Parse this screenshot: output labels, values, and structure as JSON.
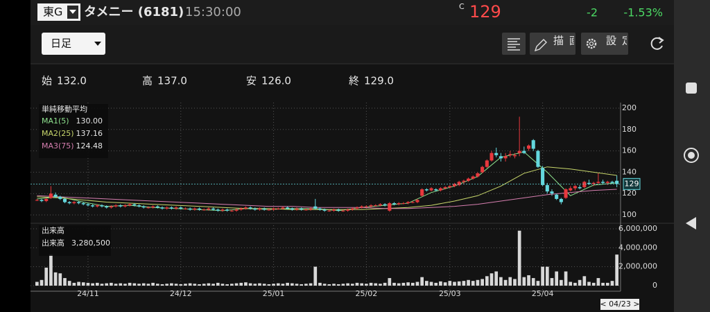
{
  "header": {
    "market": "東G",
    "name": "タメニー (6181)",
    "time": "15:30:00",
    "price_prefix": "C",
    "price": 129,
    "change": -2,
    "change_pct": {
      "value": -1.53,
      "label": "-1.53%"
    }
  },
  "toolbar": {
    "period": "日足",
    "draw_button": "描画",
    "settings_button": "設定"
  },
  "ohlc_summary": [
    {
      "label": "始",
      "value": 132,
      "value_label": "132.0"
    },
    {
      "label": "高",
      "value": 137,
      "value_label": "137.0"
    },
    {
      "label": "安",
      "value": 126,
      "value_label": "126.0"
    },
    {
      "label": "終",
      "value": 129,
      "value_label": "129.0"
    }
  ],
  "chart_data": {
    "type": "candlestick",
    "up_color": "#e8383d",
    "down_color": "#64d8de",
    "xlim": [
      -0.5,
      125.5
    ],
    "xticks": [
      {
        "value": 11,
        "label": "24/11"
      },
      {
        "value": 31,
        "label": "24/12"
      },
      {
        "value": 51,
        "label": "25/01"
      },
      {
        "value": 71,
        "label": "25/02"
      },
      {
        "value": 89,
        "label": "25/03"
      },
      {
        "value": 109,
        "label": "25/04"
      }
    ],
    "ylim": [
      100,
      200
    ],
    "yticks": [
      100,
      120,
      140,
      160,
      180,
      200
    ],
    "grid": true,
    "last_price": 129,
    "cursor_date": "< 04/23 >",
    "candles": [
      [
        114,
        115,
        113,
        114
      ],
      [
        114,
        115,
        112,
        113
      ],
      [
        113,
        116,
        112,
        115
      ],
      [
        116,
        127,
        115,
        120
      ],
      [
        119,
        121,
        116,
        117
      ],
      [
        117,
        118,
        114,
        115
      ],
      [
        115,
        116,
        111,
        112
      ],
      [
        112,
        113,
        110,
        111
      ],
      [
        111,
        113,
        110,
        112
      ],
      [
        112,
        113,
        110,
        111
      ],
      [
        111,
        112,
        109,
        110
      ],
      [
        110,
        111,
        108,
        109
      ],
      [
        109,
        110,
        107,
        108
      ],
      [
        108,
        110,
        107,
        109
      ],
      [
        109,
        110,
        107,
        108
      ],
      [
        108,
        109,
        106,
        107
      ],
      [
        107,
        109,
        106,
        108
      ],
      [
        108,
        110,
        107,
        109
      ],
      [
        109,
        110,
        107,
        108
      ],
      [
        108,
        110,
        107,
        109
      ],
      [
        109,
        111,
        108,
        110
      ],
      [
        110,
        111,
        108,
        109
      ],
      [
        109,
        110,
        107,
        108
      ],
      [
        108,
        109,
        106,
        107
      ],
      [
        107,
        108,
        106,
        107
      ],
      [
        107,
        109,
        106,
        108
      ],
      [
        108,
        109,
        106,
        107
      ],
      [
        107,
        108,
        105,
        106
      ],
      [
        106,
        108,
        105,
        107
      ],
      [
        107,
        108,
        105,
        106
      ],
      [
        106,
        108,
        105,
        107
      ],
      [
        107,
        108,
        105,
        106
      ],
      [
        106,
        107,
        105,
        106
      ],
      [
        106,
        107,
        104,
        105
      ],
      [
        105,
        107,
        104,
        106
      ],
      [
        106,
        107,
        104,
        105
      ],
      [
        105,
        106,
        104,
        105
      ],
      [
        105,
        107,
        104,
        106
      ],
      [
        106,
        107,
        104,
        105
      ],
      [
        105,
        106,
        103,
        104
      ],
      [
        104,
        106,
        103,
        105
      ],
      [
        105,
        106,
        103,
        104
      ],
      [
        104,
        105,
        103,
        104
      ],
      [
        104,
        106,
        103,
        105
      ],
      [
        105,
        107,
        104,
        106
      ],
      [
        106,
        108,
        105,
        107
      ],
      [
        107,
        108,
        105,
        106
      ],
      [
        106,
        107,
        104,
        105
      ],
      [
        105,
        107,
        104,
        106
      ],
      [
        106,
        107,
        104,
        105
      ],
      [
        105,
        106,
        104,
        105
      ],
      [
        105,
        107,
        104,
        106
      ],
      [
        106,
        107,
        105,
        106
      ],
      [
        106,
        108,
        105,
        107
      ],
      [
        107,
        108,
        105,
        106
      ],
      [
        106,
        107,
        104,
        105
      ],
      [
        105,
        107,
        104,
        106
      ],
      [
        106,
        107,
        104,
        105
      ],
      [
        105,
        106,
        104,
        105
      ],
      [
        105,
        107,
        104,
        106
      ],
      [
        108,
        115,
        105,
        106
      ],
      [
        106,
        107,
        104,
        105
      ],
      [
        105,
        106,
        103,
        104
      ],
      [
        104,
        105,
        103,
        104
      ],
      [
        104,
        106,
        103,
        105
      ],
      [
        105,
        106,
        103,
        104
      ],
      [
        104,
        105,
        103,
        104
      ],
      [
        104,
        106,
        103,
        105
      ],
      [
        105,
        107,
        104,
        106
      ],
      [
        106,
        108,
        105,
        107
      ],
      [
        107,
        109,
        106,
        108
      ],
      [
        108,
        109,
        107,
        108
      ],
      [
        108,
        110,
        107,
        109
      ],
      [
        109,
        110,
        108,
        109
      ],
      [
        109,
        111,
        108,
        110
      ],
      [
        110,
        111,
        108,
        109
      ],
      [
        104,
        112,
        103,
        111
      ],
      [
        111,
        112,
        109,
        110
      ],
      [
        110,
        112,
        109,
        111
      ],
      [
        111,
        112,
        110,
        111
      ],
      [
        111,
        113,
        110,
        112
      ],
      [
        112,
        113,
        111,
        112
      ],
      [
        112,
        115,
        111,
        114
      ],
      [
        118,
        125,
        117,
        124
      ],
      [
        124,
        125,
        122,
        123
      ],
      [
        123,
        126,
        122,
        125
      ],
      [
        124,
        125,
        122,
        123
      ],
      [
        123,
        126,
        122,
        125
      ],
      [
        125,
        127,
        124,
        126
      ],
      [
        126,
        128,
        125,
        127
      ],
      [
        127,
        130,
        126,
        129
      ],
      [
        128,
        132,
        127,
        131
      ],
      [
        131,
        133,
        129,
        132
      ],
      [
        132,
        135,
        131,
        134
      ],
      [
        134,
        137,
        133,
        136
      ],
      [
        136,
        140,
        135,
        139
      ],
      [
        140,
        146,
        139,
        145
      ],
      [
        145,
        152,
        144,
        151
      ],
      [
        151,
        160,
        150,
        158
      ],
      [
        158,
        163,
        154,
        156
      ],
      [
        155,
        158,
        150,
        153
      ],
      [
        153,
        158,
        150,
        155
      ],
      [
        156,
        160,
        154,
        157
      ],
      [
        155,
        158,
        153,
        156
      ],
      [
        158,
        192,
        155,
        160
      ],
      [
        160,
        164,
        157,
        158
      ],
      [
        162,
        166,
        160,
        165
      ],
      [
        170,
        171,
        160,
        162
      ],
      [
        160,
        161,
        144,
        145
      ],
      [
        144,
        146,
        127,
        128
      ],
      [
        128,
        130,
        120,
        122
      ],
      [
        122,
        124,
        118,
        120
      ],
      [
        119,
        120,
        114,
        115
      ],
      [
        115,
        116,
        110,
        112
      ],
      [
        116,
        125,
        115,
        124
      ],
      [
        123,
        127,
        122,
        125
      ],
      [
        125,
        128,
        123,
        127
      ],
      [
        126,
        128,
        124,
        125
      ],
      [
        126,
        132,
        125,
        131
      ],
      [
        130,
        133,
        128,
        129
      ],
      [
        129,
        131,
        127,
        130
      ],
      [
        130,
        139,
        129,
        131
      ],
      [
        131,
        133,
        129,
        130
      ],
      [
        130,
        132,
        128,
        131
      ],
      [
        131,
        132,
        129,
        130
      ],
      [
        132,
        137,
        126,
        129
      ]
    ],
    "ma_title": "単純移動平均",
    "moving_averages": [
      {
        "name": "MA1(5)",
        "color": "#8fe38f",
        "last": {
          "value": 130,
          "label": "130.00"
        },
        "x": [
          0,
          5,
          10,
          15,
          20,
          25,
          30,
          35,
          40,
          45,
          50,
          55,
          60,
          65,
          70,
          75,
          80,
          85,
          90,
          95,
          100,
          105,
          110,
          115,
          120,
          125
        ],
        "values": [
          115,
          117,
          112,
          108,
          109,
          107,
          106,
          105,
          104,
          106,
          105,
          106,
          106,
          104,
          107,
          109,
          111,
          121,
          127,
          136,
          154,
          159,
          140,
          118,
          128,
          130
        ]
      },
      {
        "name": "MA2(25)",
        "color": "#c9d86c",
        "last": {
          "value": 137.16,
          "label": "137.16"
        },
        "x": [
          0,
          5,
          10,
          15,
          20,
          25,
          30,
          35,
          40,
          45,
          50,
          55,
          60,
          65,
          70,
          75,
          80,
          85,
          90,
          95,
          100,
          105,
          110,
          115,
          120,
          125
        ],
        "values": [
          117,
          116,
          114,
          112,
          111,
          110,
          109,
          108,
          107,
          106,
          106,
          105,
          105,
          105,
          105,
          106,
          107,
          109,
          113,
          118,
          127,
          139,
          145,
          143,
          140,
          137
        ]
      },
      {
        "name": "MA3(75)",
        "color": "#d77fb0",
        "last": {
          "value": 124.48,
          "label": "124.48"
        },
        "x": [
          0,
          5,
          10,
          15,
          20,
          25,
          30,
          35,
          40,
          45,
          50,
          55,
          60,
          65,
          70,
          75,
          80,
          85,
          90,
          95,
          100,
          105,
          110,
          115,
          120,
          125
        ],
        "values": [
          118,
          117,
          116,
          115,
          114,
          113,
          112,
          111,
          110,
          109,
          108,
          108,
          107,
          107,
          107,
          106,
          106,
          107,
          108,
          110,
          113,
          116,
          119,
          121,
          123,
          124
        ]
      }
    ],
    "volume": {
      "title": "出来高",
      "label": "出来高",
      "last": {
        "value": 3280500,
        "label": "3,280,500"
      },
      "color": "#d8d8d8",
      "ylim": [
        0,
        6000000
      ],
      "yticks": [
        0,
        {
          "value": 2000000,
          "label": "2,000,000"
        },
        {
          "value": 4000000,
          "label": "4,000,000"
        },
        {
          "value": 6000000,
          "label": "6,000,000"
        }
      ],
      "values": [
        400000,
        600000,
        1900000,
        3300000,
        1400000,
        1300000,
        800000,
        500000,
        300000,
        400000,
        350000,
        300000,
        250000,
        300000,
        200000,
        250000,
        300000,
        200000,
        250000,
        200000,
        300000,
        250000,
        200000,
        250000,
        200000,
        300000,
        200000,
        150000,
        200000,
        250000,
        200000,
        150000,
        200000,
        250000,
        200000,
        150000,
        200000,
        250000,
        200000,
        300000,
        200000,
        150000,
        200000,
        250000,
        300000,
        350000,
        250000,
        200000,
        250000,
        200000,
        150000,
        200000,
        250000,
        200000,
        300000,
        250000,
        200000,
        150000,
        200000,
        250000,
        2000000,
        300000,
        200000,
        150000,
        200000,
        150000,
        200000,
        250000,
        200000,
        300000,
        250000,
        200000,
        300000,
        250000,
        200000,
        300000,
        800000,
        300000,
        250000,
        300000,
        350000,
        300000,
        400000,
        900000,
        500000,
        400000,
        300000,
        450000,
        350000,
        500000,
        400000,
        450000,
        500000,
        600000,
        500000,
        600000,
        700000,
        1000000,
        1300000,
        1500000,
        900000,
        600000,
        900000,
        700000,
        5800000,
        900000,
        1100000,
        800000,
        500000,
        2000000,
        2000000,
        800000,
        1500000,
        600000,
        1500000,
        400000,
        300000,
        600000,
        1000000,
        400000,
        300000,
        800000,
        300000,
        300000,
        500000,
        3280500
      ]
    }
  }
}
